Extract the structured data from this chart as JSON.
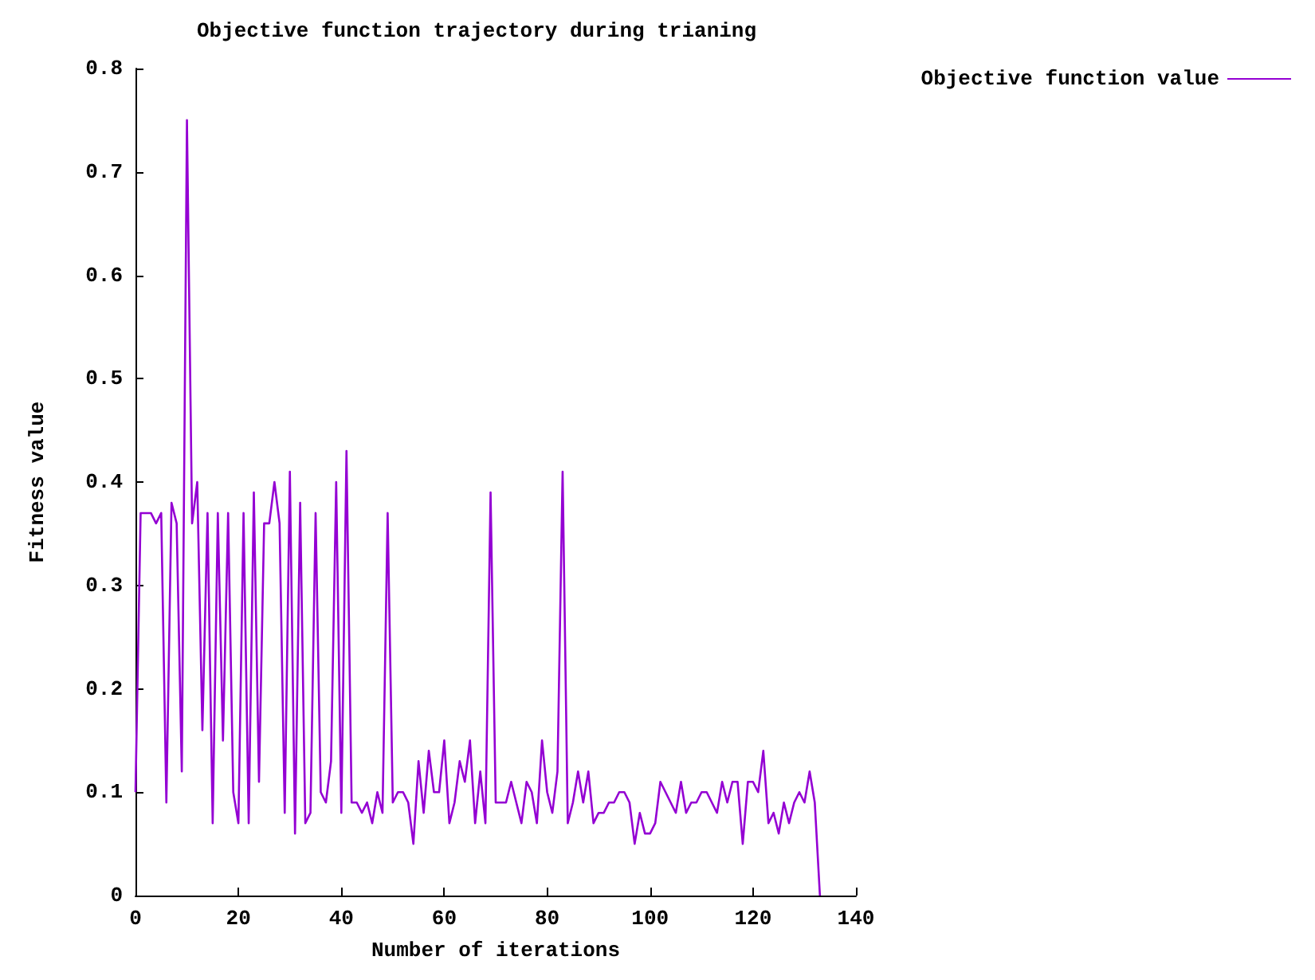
{
  "chart_data": {
    "type": "line",
    "title": "Objective function trajectory during trianing",
    "xlabel": "Number of iterations",
    "ylabel": "Fitness value",
    "x": [
      0,
      1,
      2,
      3,
      4,
      5,
      6,
      7,
      8,
      9,
      10,
      11,
      12,
      13,
      14,
      15,
      16,
      17,
      18,
      19,
      20,
      21,
      22,
      23,
      24,
      25,
      26,
      27,
      28,
      29,
      30,
      31,
      32,
      33,
      34,
      35,
      36,
      37,
      38,
      39,
      40,
      41,
      42,
      43,
      44,
      45,
      46,
      47,
      48,
      49,
      50,
      51,
      52,
      53,
      54,
      55,
      56,
      57,
      58,
      59,
      60,
      61,
      62,
      63,
      64,
      65,
      66,
      67,
      68,
      69,
      70,
      71,
      72,
      73,
      74,
      75,
      76,
      77,
      78,
      79,
      80,
      81,
      82,
      83,
      84,
      85,
      86,
      87,
      88,
      89,
      90,
      91,
      92,
      93,
      94,
      95,
      96,
      97,
      98,
      99,
      100,
      101,
      102,
      103,
      104,
      105,
      106,
      107,
      108,
      109,
      110,
      111,
      112,
      113,
      114,
      115,
      116,
      117,
      118,
      119,
      120,
      121,
      122,
      123,
      124,
      125,
      126,
      127,
      128,
      129,
      130,
      131,
      132,
      133
    ],
    "series": [
      {
        "name": "Objective function value",
        "color": "#9400d3",
        "values": [
          0.1,
          0.37,
          0.37,
          0.37,
          0.36,
          0.37,
          0.09,
          0.38,
          0.36,
          0.12,
          0.75,
          0.36,
          0.4,
          0.16,
          0.37,
          0.07,
          0.37,
          0.15,
          0.37,
          0.1,
          0.07,
          0.37,
          0.07,
          0.39,
          0.11,
          0.36,
          0.36,
          0.4,
          0.36,
          0.08,
          0.41,
          0.06,
          0.38,
          0.07,
          0.08,
          0.37,
          0.1,
          0.09,
          0.13,
          0.4,
          0.08,
          0.43,
          0.09,
          0.09,
          0.08,
          0.09,
          0.07,
          0.1,
          0.08,
          0.37,
          0.09,
          0.1,
          0.1,
          0.09,
          0.05,
          0.13,
          0.08,
          0.14,
          0.1,
          0.1,
          0.15,
          0.07,
          0.09,
          0.13,
          0.11,
          0.15,
          0.07,
          0.12,
          0.07,
          0.39,
          0.09,
          0.09,
          0.09,
          0.11,
          0.09,
          0.07,
          0.11,
          0.1,
          0.07,
          0.15,
          0.1,
          0.08,
          0.12,
          0.41,
          0.07,
          0.09,
          0.12,
          0.09,
          0.12,
          0.07,
          0.08,
          0.08,
          0.09,
          0.09,
          0.1,
          0.1,
          0.09,
          0.05,
          0.08,
          0.06,
          0.06,
          0.07,
          0.11,
          0.1,
          0.09,
          0.08,
          0.11,
          0.08,
          0.09,
          0.09,
          0.1,
          0.1,
          0.09,
          0.08,
          0.11,
          0.09,
          0.11,
          0.11,
          0.05,
          0.11,
          0.11,
          0.1,
          0.14,
          0.07,
          0.08,
          0.06,
          0.09,
          0.07,
          0.09,
          0.1,
          0.09,
          0.12,
          0.09,
          0
        ]
      }
    ],
    "xlim": [
      0,
      140
    ],
    "xticks": [
      0,
      20,
      40,
      60,
      80,
      100,
      120,
      140
    ],
    "ylim": [
      0,
      0.8
    ],
    "yticks": [
      0,
      0.1,
      0.2,
      0.3,
      0.4,
      0.5,
      0.6,
      0.7,
      0.8
    ],
    "grid": false,
    "legend": "top right",
    "marker": "none",
    "line_style": "solid"
  }
}
